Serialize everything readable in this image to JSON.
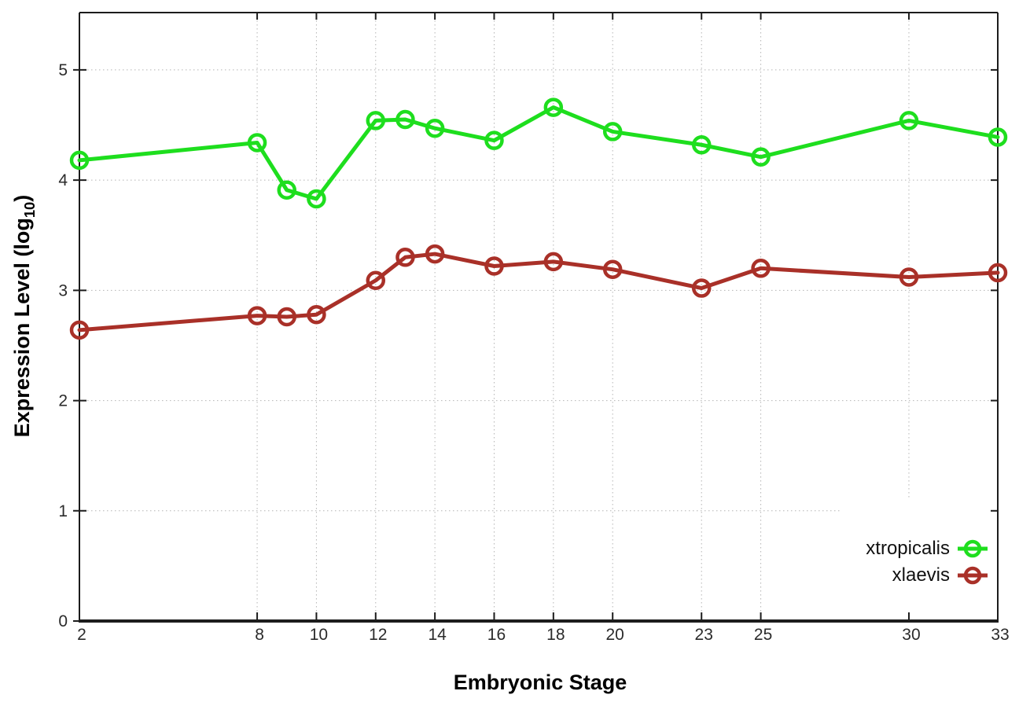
{
  "chart_data": {
    "type": "line",
    "title": "",
    "xlabel": "Embryonic Stage",
    "ylabel": "Expression Level (log10)",
    "ylabel_parts": {
      "main": "Expression Level (log",
      "sub": "10",
      "close": ")"
    },
    "x": [
      2,
      8,
      9,
      10,
      12,
      13,
      14,
      16,
      18,
      20,
      23,
      25,
      30,
      33
    ],
    "series": [
      {
        "name": "xtropicalis",
        "color": "#1ede1e",
        "values": [
          4.18,
          4.34,
          3.91,
          3.83,
          4.54,
          4.55,
          4.47,
          4.36,
          4.66,
          4.44,
          4.32,
          4.21,
          4.54,
          4.39
        ]
      },
      {
        "name": "xlaevis",
        "color": "#a93028",
        "values": [
          2.64,
          2.77,
          2.76,
          2.78,
          3.09,
          3.3,
          3.33,
          3.22,
          3.26,
          3.19,
          3.02,
          3.2,
          3.12,
          3.16
        ]
      }
    ],
    "xticks": [
      2,
      8,
      10,
      12,
      14,
      16,
      18,
      20,
      23,
      25,
      30,
      33
    ],
    "yticks": [
      0,
      1,
      2,
      3,
      4,
      5
    ],
    "xlim": [
      2,
      33
    ],
    "ylim": [
      0,
      5.52
    ],
    "grid": true,
    "legend_position": "bottom-right",
    "style": {
      "axis_color": "#1c1c1c",
      "grid_color": "#b4b4b4",
      "tick_label_color": "#2b2b2b",
      "background": "#ffffff",
      "line_width": 5,
      "marker_radius": 10,
      "marker_stroke": 4.5
    }
  }
}
